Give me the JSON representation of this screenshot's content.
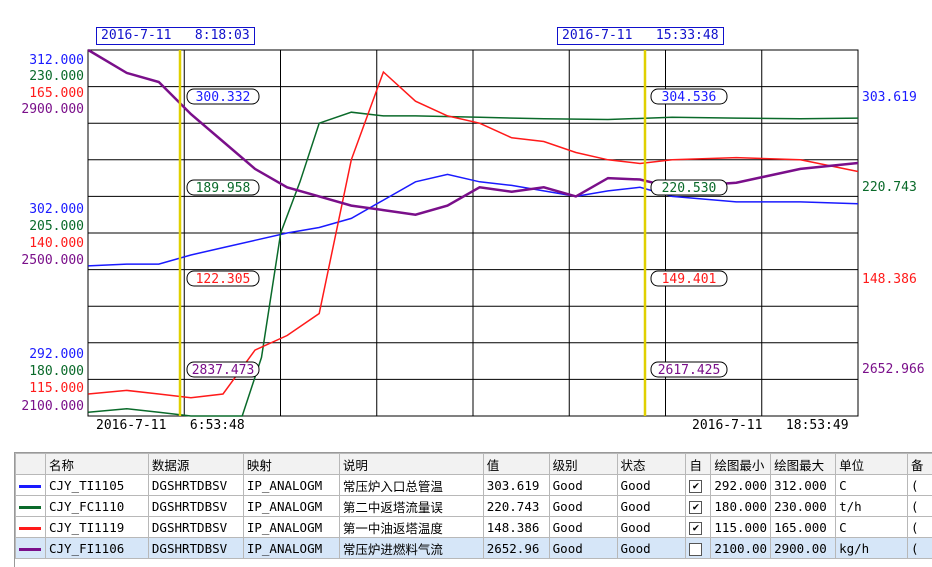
{
  "cursors": {
    "left_time": "2016-7-11   8:18:03",
    "right_time": "2016-7-11   15:33:48",
    "left_values": [
      "300.332",
      "189.958",
      "122.305",
      "2837.473"
    ],
    "right_values": [
      "304.536",
      "220.530",
      "149.401",
      "2617.425"
    ]
  },
  "x_axis": {
    "start": "2016-7-11   6:53:48",
    "end": "2016-7-11   18:53:49"
  },
  "y_axis_left": {
    "top": [
      "312.000",
      "230.000",
      "165.000",
      "2900.000"
    ],
    "middle": [
      "302.000",
      "205.000",
      "140.000",
      "2500.000"
    ],
    "bottom": [
      "292.000",
      "180.000",
      "115.000",
      "2100.000"
    ]
  },
  "right_values": [
    "303.619",
    "220.743",
    "148.386",
    "2652.966"
  ],
  "colors": {
    "blue": "#1a1aff",
    "green": "#0a6a2a",
    "red": "#ff1a1a",
    "purple": "#7a0f8a",
    "cursor": "#e0d000"
  },
  "table": {
    "headers": [
      "名称",
      "数据源",
      "映射",
      "说明",
      "值",
      "级别",
      "状态",
      "自",
      "绘图最小",
      "绘图最大",
      "单位",
      "备"
    ],
    "rows": [
      [
        "CJY_TI1105",
        "DGSHRTDBSV",
        "IP_ANALOGM",
        "常压炉入口总管温",
        "303.619",
        "Good",
        "Good",
        "checked",
        "292.000",
        "312.000",
        "C",
        "("
      ],
      [
        "CJY_FC1110",
        "DGSHRTDBSV",
        "IP_ANALOGM",
        "第二中返塔流量误",
        "220.743",
        "Good",
        "Good",
        "checked",
        "180.000",
        "230.000",
        "t/h",
        "("
      ],
      [
        "CJY_TI1119",
        "DGSHRTDBSV",
        "IP_ANALOGM",
        "第一中油返塔温度",
        "148.386",
        "Good",
        "Good",
        "checked",
        "115.000",
        "165.000",
        "C",
        "("
      ],
      [
        "CJY_FI1106",
        "DGSHRTDBSV",
        "IP_ANALOGM",
        "常压炉进燃料气流",
        "2652.96",
        "Good",
        "Good",
        "unchecked",
        "2100.00",
        "2900.00",
        "kg/h",
        "("
      ]
    ]
  },
  "chart_data": {
    "type": "line",
    "x_range": [
      "2016-7-11 6:53:48",
      "2016-7-11 18:53:49"
    ],
    "series": [
      {
        "name": "CJY_TI1105",
        "color": "#1a1aff",
        "ylim": [
          292,
          312
        ],
        "x_hours": [
          6.9,
          7.5,
          8.0,
          8.5,
          9.0,
          9.5,
          10.0,
          10.5,
          11.0,
          11.5,
          12.0,
          12.5,
          13.0,
          13.5,
          14.0,
          14.5,
          15.0,
          15.5,
          16.0,
          17.0,
          18.0,
          18.9
        ],
        "values": [
          300.2,
          300.3,
          300.3,
          300.8,
          301.2,
          301.6,
          302.0,
          302.3,
          302.8,
          303.8,
          304.8,
          305.2,
          304.8,
          304.6,
          304.3,
          304.0,
          304.3,
          304.5,
          304.0,
          303.7,
          303.7,
          303.6
        ]
      },
      {
        "name": "CJY_FC1110",
        "color": "#0a6a2a",
        "ylim": [
          180,
          230
        ],
        "x_hours": [
          6.9,
          7.5,
          8.0,
          8.5,
          9.0,
          9.3,
          9.6,
          9.9,
          10.2,
          10.5,
          11.0,
          11.5,
          12.0,
          13.0,
          14.0,
          15.0,
          16.0,
          17.0,
          18.0,
          18.9
        ],
        "values": [
          180.5,
          181.0,
          180.5,
          179.5,
          178.5,
          176.0,
          188.0,
          205.0,
          212.0,
          220.0,
          221.5,
          221.0,
          221.0,
          220.8,
          220.6,
          220.5,
          220.8,
          220.7,
          220.6,
          220.7
        ]
      },
      {
        "name": "CJY_TI1119",
        "color": "#ff1a1a",
        "ylim": [
          115,
          165
        ],
        "x_hours": [
          6.9,
          7.5,
          8.0,
          8.5,
          9.0,
          9.5,
          10.0,
          10.5,
          11.0,
          11.5,
          12.0,
          12.5,
          13.0,
          13.5,
          14.0,
          14.5,
          15.0,
          15.5,
          16.0,
          17.0,
          18.0,
          18.9
        ],
        "values": [
          118.0,
          118.5,
          118.0,
          117.5,
          118.0,
          124.0,
          126.0,
          129.0,
          150.0,
          162.0,
          158.0,
          156.0,
          155.0,
          153.0,
          152.5,
          151.0,
          150.0,
          149.5,
          150.0,
          150.3,
          150.0,
          148.4
        ]
      },
      {
        "name": "CJY_FI1106",
        "color": "#7a0f8a",
        "ylim": [
          2100,
          2900
        ],
        "x_hours": [
          6.9,
          7.5,
          8.0,
          8.5,
          9.0,
          9.5,
          10.0,
          10.5,
          11.0,
          11.5,
          12.0,
          12.5,
          13.0,
          13.5,
          14.0,
          14.5,
          15.0,
          15.5,
          16.0,
          17.0,
          18.0,
          18.9
        ],
        "values": [
          2900,
          2850,
          2830,
          2760,
          2700,
          2640,
          2600,
          2580,
          2560,
          2550,
          2540,
          2560,
          2600,
          2590,
          2600,
          2580,
          2620,
          2617,
          2600,
          2610,
          2640,
          2653
        ]
      }
    ]
  }
}
